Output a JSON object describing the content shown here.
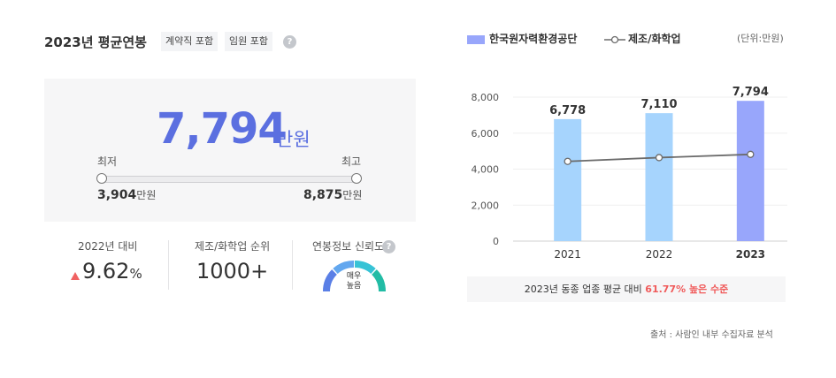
{
  "header": {
    "title": "2023년 평균연봉",
    "chips": [
      "계약직 포함",
      "임원 포함"
    ],
    "help_glyph": "?"
  },
  "summary": {
    "average": "7,794",
    "average_unit": "만원",
    "min_label": "최저",
    "max_label": "최고",
    "min_value": "3,904",
    "max_value": "8,875",
    "value_unit": "만원"
  },
  "stats": [
    {
      "label": "2022년 대비",
      "value": "9.62",
      "suffix": "%"
    },
    {
      "label": "제조/화학업 순위",
      "value": "1000+"
    },
    {
      "label": "연봉정보 신뢰도",
      "gauge_text_1": "매우",
      "gauge_text_2": "높음"
    }
  ],
  "legend": {
    "company": "한국원자력환경공단",
    "industry": "제조/화학업",
    "unit_note": "(단위:만원)"
  },
  "chart_data": {
    "type": "bar",
    "categories": [
      "2021",
      "2022",
      "2023"
    ],
    "series": [
      {
        "name": "한국원자력환경공단",
        "values": [
          6778,
          7110,
          7794
        ],
        "labels": [
          "6,778",
          "7,110",
          "7,794"
        ]
      },
      {
        "name": "제조/화학업",
        "type": "line",
        "values": [
          4430,
          4640,
          4820
        ]
      }
    ],
    "ylim": [
      0,
      8000
    ],
    "yticks": [
      0,
      2000,
      4000,
      6000,
      8000
    ],
    "ytick_labels": [
      "0",
      "2,000",
      "4,000",
      "6,000",
      "8,000"
    ],
    "grid": true,
    "colors": {
      "bar": "#a6d4fd",
      "bar_highlight": "#98a6fb",
      "line": "#6b6b6b"
    }
  },
  "comparison": {
    "prefix": "2023년 동종 업종 평균 대비",
    "highlight": "61.77% 높은 수준"
  },
  "source": "출처 : 사람인 내부 수집자료 분석"
}
